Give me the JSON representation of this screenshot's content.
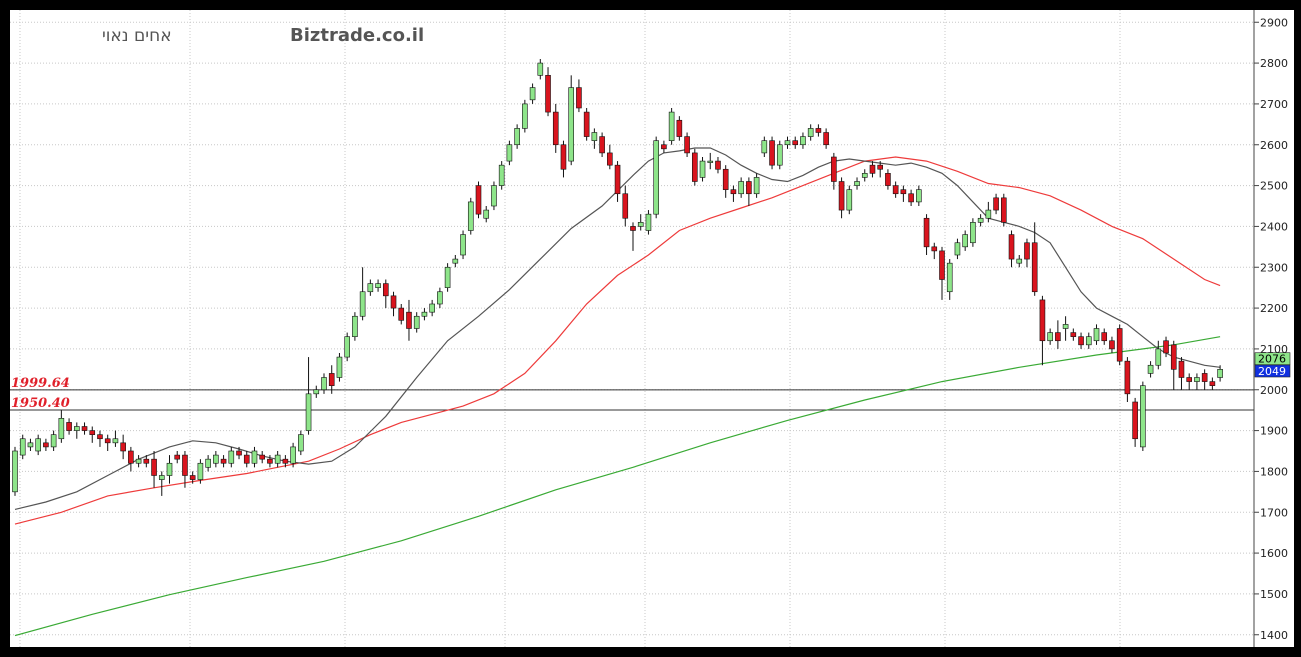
{
  "chart_data": {
    "type": "candlestick",
    "watermark": "Biztrade.co.il",
    "header_text": "אחים נאוי",
    "ylim": [
      1370,
      2930
    ],
    "y_ticks": [
      1400,
      1500,
      1600,
      1700,
      1800,
      1900,
      2000,
      2100,
      2200,
      2300,
      2400,
      2500,
      2600,
      2700,
      2800,
      2900
    ],
    "grid": true,
    "reference_lines": [
      {
        "label": "1999.64",
        "value": 1999.64
      },
      {
        "label": "1950.40",
        "value": 1950.4
      }
    ],
    "badges": [
      {
        "label": "2076",
        "value": 2076,
        "color": "#8ee58a",
        "text_color": "#000000"
      },
      {
        "label": "2049",
        "value": 2049,
        "color": "#1030e0",
        "text_color": "#ffffff"
      }
    ],
    "colors": {
      "up": "#8ee58a",
      "down": "#d9141e",
      "ma_short": "#555555",
      "ma_mid": "#ee3b3b",
      "ma_long": "#3aaa35",
      "grid": "#c8c8c8",
      "background": "#ffffff"
    },
    "candles": [
      [
        1750,
        1850,
        1740,
        1860
      ],
      [
        1840,
        1880,
        1830,
        1890
      ],
      [
        1860,
        1870,
        1850,
        1880
      ],
      [
        1850,
        1880,
        1840,
        1890
      ],
      [
        1870,
        1860,
        1850,
        1880
      ],
      [
        1860,
        1890,
        1850,
        1900
      ],
      [
        1880,
        1930,
        1870,
        1950
      ],
      [
        1920,
        1900,
        1890,
        1930
      ],
      [
        1900,
        1910,
        1880,
        1920
      ],
      [
        1910,
        1900,
        1890,
        1920
      ],
      [
        1900,
        1890,
        1870,
        1910
      ],
      [
        1890,
        1880,
        1860,
        1900
      ],
      [
        1880,
        1870,
        1850,
        1890
      ],
      [
        1870,
        1880,
        1860,
        1900
      ],
      [
        1870,
        1850,
        1830,
        1890
      ],
      [
        1850,
        1820,
        1800,
        1860
      ],
      [
        1820,
        1830,
        1810,
        1840
      ],
      [
        1830,
        1820,
        1810,
        1840
      ],
      [
        1830,
        1790,
        1760,
        1850
      ],
      [
        1780,
        1790,
        1740,
        1800
      ],
      [
        1790,
        1820,
        1770,
        1840
      ],
      [
        1840,
        1830,
        1820,
        1850
      ],
      [
        1840,
        1790,
        1760,
        1850
      ],
      [
        1790,
        1780,
        1770,
        1800
      ],
      [
        1780,
        1820,
        1770,
        1830
      ],
      [
        1810,
        1830,
        1800,
        1840
      ],
      [
        1820,
        1840,
        1810,
        1850
      ],
      [
        1830,
        1820,
        1810,
        1840
      ],
      [
        1820,
        1850,
        1810,
        1860
      ],
      [
        1850,
        1840,
        1830,
        1860
      ],
      [
        1840,
        1820,
        1810,
        1850
      ],
      [
        1820,
        1850,
        1810,
        1860
      ],
      [
        1840,
        1830,
        1820,
        1850
      ],
      [
        1830,
        1820,
        1810,
        1840
      ],
      [
        1820,
        1840,
        1810,
        1850
      ],
      [
        1830,
        1820,
        1810,
        1840
      ],
      [
        1820,
        1860,
        1810,
        1870
      ],
      [
        1850,
        1890,
        1840,
        1900
      ],
      [
        1900,
        1990,
        1890,
        2080
      ],
      [
        1990,
        2000,
        1980,
        2010
      ],
      [
        2000,
        2030,
        1990,
        2040
      ],
      [
        2040,
        2010,
        1990,
        2060
      ],
      [
        2030,
        2080,
        2020,
        2090
      ],
      [
        2080,
        2130,
        2070,
        2140
      ],
      [
        2130,
        2180,
        2120,
        2190
      ],
      [
        2180,
        2240,
        2170,
        2300
      ],
      [
        2240,
        2260,
        2230,
        2270
      ],
      [
        2250,
        2260,
        2240,
        2270
      ],
      [
        2260,
        2230,
        2200,
        2270
      ],
      [
        2230,
        2200,
        2180,
        2240
      ],
      [
        2200,
        2170,
        2160,
        2210
      ],
      [
        2190,
        2150,
        2120,
        2220
      ],
      [
        2150,
        2180,
        2140,
        2190
      ],
      [
        2180,
        2190,
        2170,
        2200
      ],
      [
        2190,
        2210,
        2180,
        2220
      ],
      [
        2210,
        2240,
        2200,
        2250
      ],
      [
        2250,
        2300,
        2240,
        2310
      ],
      [
        2310,
        2320,
        2300,
        2330
      ],
      [
        2330,
        2380,
        2320,
        2390
      ],
      [
        2390,
        2460,
        2380,
        2470
      ],
      [
        2500,
        2430,
        2420,
        2510
      ],
      [
        2420,
        2440,
        2410,
        2450
      ],
      [
        2450,
        2500,
        2440,
        2510
      ],
      [
        2500,
        2550,
        2490,
        2560
      ],
      [
        2560,
        2600,
        2550,
        2610
      ],
      [
        2600,
        2640,
        2590,
        2650
      ],
      [
        2640,
        2700,
        2630,
        2710
      ],
      [
        2710,
        2740,
        2700,
        2750
      ],
      [
        2770,
        2800,
        2760,
        2810
      ],
      [
        2770,
        2680,
        2670,
        2790
      ],
      [
        2680,
        2600,
        2580,
        2700
      ],
      [
        2600,
        2540,
        2520,
        2610
      ],
      [
        2560,
        2740,
        2550,
        2770
      ],
      [
        2740,
        2690,
        2680,
        2760
      ],
      [
        2680,
        2620,
        2610,
        2690
      ],
      [
        2610,
        2630,
        2590,
        2640
      ],
      [
        2620,
        2580,
        2570,
        2630
      ],
      [
        2580,
        2550,
        2540,
        2600
      ],
      [
        2550,
        2480,
        2460,
        2560
      ],
      [
        2480,
        2420,
        2400,
        2500
      ],
      [
        2400,
        2390,
        2340,
        2410
      ],
      [
        2400,
        2410,
        2390,
        2430
      ],
      [
        2390,
        2430,
        2380,
        2440
      ],
      [
        2430,
        2610,
        2420,
        2620
      ],
      [
        2600,
        2590,
        2580,
        2610
      ],
      [
        2610,
        2680,
        2600,
        2690
      ],
      [
        2660,
        2620,
        2610,
        2670
      ],
      [
        2620,
        2580,
        2570,
        2630
      ],
      [
        2580,
        2510,
        2500,
        2590
      ],
      [
        2520,
        2560,
        2510,
        2570
      ],
      [
        2560,
        2560,
        2540,
        2580
      ],
      [
        2560,
        2540,
        2530,
        2570
      ],
      [
        2540,
        2490,
        2470,
        2550
      ],
      [
        2490,
        2480,
        2460,
        2500
      ],
      [
        2480,
        2510,
        2470,
        2520
      ],
      [
        2510,
        2480,
        2450,
        2520
      ],
      [
        2480,
        2520,
        2470,
        2530
      ],
      [
        2580,
        2610,
        2570,
        2620
      ],
      [
        2610,
        2550,
        2540,
        2620
      ],
      [
        2550,
        2600,
        2540,
        2610
      ],
      [
        2600,
        2610,
        2590,
        2620
      ],
      [
        2610,
        2600,
        2590,
        2620
      ],
      [
        2600,
        2620,
        2590,
        2630
      ],
      [
        2620,
        2640,
        2610,
        2650
      ],
      [
        2640,
        2630,
        2620,
        2650
      ],
      [
        2630,
        2600,
        2590,
        2640
      ],
      [
        2570,
        2510,
        2490,
        2580
      ],
      [
        2510,
        2440,
        2420,
        2520
      ],
      [
        2440,
        2490,
        2430,
        2500
      ],
      [
        2500,
        2510,
        2490,
        2520
      ],
      [
        2520,
        2530,
        2510,
        2540
      ],
      [
        2550,
        2530,
        2520,
        2560
      ],
      [
        2550,
        2540,
        2520,
        2560
      ],
      [
        2530,
        2500,
        2490,
        2540
      ],
      [
        2500,
        2480,
        2470,
        2510
      ],
      [
        2490,
        2480,
        2460,
        2500
      ],
      [
        2480,
        2460,
        2450,
        2490
      ],
      [
        2460,
        2490,
        2450,
        2500
      ],
      [
        2420,
        2350,
        2330,
        2430
      ],
      [
        2350,
        2340,
        2320,
        2360
      ],
      [
        2340,
        2270,
        2220,
        2350
      ],
      [
        2240,
        2310,
        2220,
        2320
      ],
      [
        2330,
        2360,
        2320,
        2370
      ],
      [
        2350,
        2380,
        2340,
        2390
      ],
      [
        2360,
        2410,
        2350,
        2420
      ],
      [
        2410,
        2420,
        2400,
        2430
      ],
      [
        2420,
        2440,
        2410,
        2460
      ],
      [
        2470,
        2440,
        2430,
        2480
      ],
      [
        2470,
        2410,
        2400,
        2480
      ],
      [
        2380,
        2320,
        2300,
        2390
      ],
      [
        2310,
        2320,
        2300,
        2330
      ],
      [
        2360,
        2320,
        2300,
        2370
      ],
      [
        2360,
        2240,
        2230,
        2410
      ],
      [
        2220,
        2120,
        2060,
        2230
      ],
      [
        2120,
        2140,
        2110,
        2150
      ],
      [
        2140,
        2120,
        2100,
        2170
      ],
      [
        2150,
        2160,
        2120,
        2180
      ],
      [
        2140,
        2130,
        2120,
        2150
      ],
      [
        2130,
        2110,
        2100,
        2140
      ],
      [
        2110,
        2130,
        2100,
        2140
      ],
      [
        2120,
        2150,
        2110,
        2160
      ],
      [
        2140,
        2120,
        2110,
        2150
      ],
      [
        2120,
        2100,
        2090,
        2130
      ],
      [
        2150,
        2070,
        2060,
        2160
      ],
      [
        2070,
        1990,
        1970,
        2080
      ],
      [
        1970,
        1880,
        1860,
        1980
      ],
      [
        1860,
        2010,
        1850,
        2020
      ],
      [
        2040,
        2060,
        2030,
        2070
      ],
      [
        2060,
        2100,
        2050,
        2120
      ],
      [
        2120,
        2090,
        2080,
        2130
      ],
      [
        2110,
        2050,
        2000,
        2120
      ],
      [
        2070,
        2030,
        2000,
        2080
      ],
      [
        2030,
        2020,
        2000,
        2040
      ],
      [
        2020,
        2030,
        2000,
        2040
      ],
      [
        2040,
        2020,
        2000,
        2050
      ],
      [
        2020,
        2010,
        2000,
        2030
      ],
      [
        2030,
        2050,
        2020,
        2060
      ]
    ],
    "ma_short": [
      [
        0,
        1707
      ],
      [
        4,
        1725
      ],
      [
        8,
        1750
      ],
      [
        12,
        1790
      ],
      [
        16,
        1830
      ],
      [
        20,
        1860
      ],
      [
        23,
        1875
      ],
      [
        26,
        1870
      ],
      [
        29,
        1855
      ],
      [
        32,
        1838
      ],
      [
        35,
        1825
      ],
      [
        38,
        1818
      ],
      [
        41,
        1825
      ],
      [
        44,
        1860
      ],
      [
        48,
        1935
      ],
      [
        52,
        2030
      ],
      [
        56,
        2120
      ],
      [
        60,
        2180
      ],
      [
        64,
        2245
      ],
      [
        68,
        2320
      ],
      [
        72,
        2395
      ],
      [
        76,
        2450
      ],
      [
        80,
        2525
      ],
      [
        82,
        2560
      ],
      [
        84,
        2580
      ],
      [
        86,
        2585
      ],
      [
        88,
        2592
      ],
      [
        90,
        2592
      ],
      [
        92,
        2575
      ],
      [
        94,
        2550
      ],
      [
        96,
        2530
      ],
      [
        98,
        2515
      ],
      [
        100,
        2510
      ],
      [
        102,
        2525
      ],
      [
        104,
        2545
      ],
      [
        106,
        2560
      ],
      [
        108,
        2565
      ],
      [
        110,
        2560
      ],
      [
        112,
        2555
      ],
      [
        114,
        2550
      ],
      [
        116,
        2555
      ],
      [
        118,
        2545
      ],
      [
        120,
        2530
      ],
      [
        122,
        2500
      ],
      [
        124,
        2460
      ],
      [
        126,
        2420
      ],
      [
        128,
        2410
      ],
      [
        130,
        2400
      ],
      [
        132,
        2385
      ],
      [
        134,
        2360
      ],
      [
        136,
        2300
      ],
      [
        138,
        2240
      ],
      [
        140,
        2200
      ],
      [
        142,
        2180
      ],
      [
        144,
        2160
      ],
      [
        146,
        2130
      ],
      [
        148,
        2100
      ],
      [
        150,
        2080
      ],
      [
        152,
        2070
      ],
      [
        154,
        2060
      ],
      [
        156,
        2055
      ]
    ],
    "ma_mid": [
      [
        0,
        1671
      ],
      [
        6,
        1700
      ],
      [
        12,
        1740
      ],
      [
        18,
        1760
      ],
      [
        24,
        1778
      ],
      [
        30,
        1795
      ],
      [
        34,
        1810
      ],
      [
        38,
        1825
      ],
      [
        42,
        1855
      ],
      [
        46,
        1890
      ],
      [
        50,
        1920
      ],
      [
        54,
        1940
      ],
      [
        58,
        1960
      ],
      [
        62,
        1990
      ],
      [
        66,
        2040
      ],
      [
        70,
        2120
      ],
      [
        74,
        2210
      ],
      [
        78,
        2280
      ],
      [
        82,
        2330
      ],
      [
        86,
        2390
      ],
      [
        90,
        2420
      ],
      [
        94,
        2445
      ],
      [
        98,
        2470
      ],
      [
        102,
        2500
      ],
      [
        106,
        2530
      ],
      [
        110,
        2560
      ],
      [
        114,
        2570
      ],
      [
        118,
        2560
      ],
      [
        122,
        2535
      ],
      [
        126,
        2505
      ],
      [
        130,
        2495
      ],
      [
        134,
        2475
      ],
      [
        138,
        2440
      ],
      [
        142,
        2400
      ],
      [
        146,
        2370
      ],
      [
        150,
        2320
      ],
      [
        154,
        2270
      ],
      [
        156,
        2255
      ]
    ],
    "ma_long": [
      [
        0,
        1398
      ],
      [
        10,
        1450
      ],
      [
        20,
        1498
      ],
      [
        30,
        1540
      ],
      [
        40,
        1580
      ],
      [
        50,
        1630
      ],
      [
        60,
        1690
      ],
      [
        70,
        1755
      ],
      [
        80,
        1810
      ],
      [
        90,
        1870
      ],
      [
        100,
        1925
      ],
      [
        110,
        1975
      ],
      [
        120,
        2020
      ],
      [
        130,
        2055
      ],
      [
        140,
        2085
      ],
      [
        150,
        2110
      ],
      [
        156,
        2130
      ]
    ]
  }
}
